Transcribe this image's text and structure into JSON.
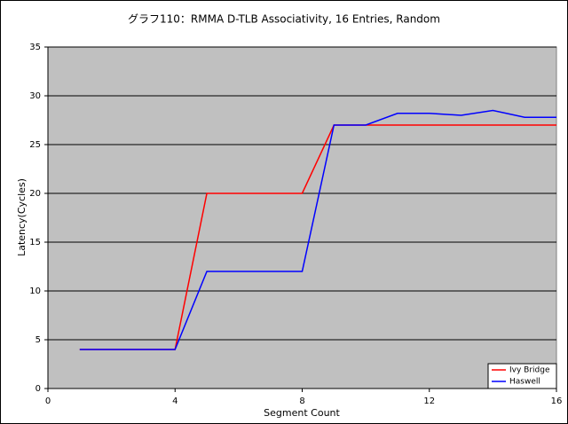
{
  "chart_data": {
    "type": "line",
    "title": "グラフ110：RMMA D-TLB Associativity, 16 Entries, Random",
    "x_label": "Segment Count",
    "y_label": "Latency(Cycles)",
    "x": [
      1,
      2,
      3,
      4,
      5,
      6,
      7,
      8,
      9,
      10,
      11,
      12,
      13,
      14,
      15,
      16
    ],
    "series": [
      {
        "name": "Ivy Bridge",
        "color": "#ff0000",
        "values": [
          4,
          4,
          4,
          4,
          20,
          20,
          20,
          20,
          27,
          27,
          27,
          27,
          27,
          27,
          27,
          27
        ]
      },
      {
        "name": "Haswell",
        "color": "#0000ff",
        "values": [
          4,
          4,
          4,
          4,
          12,
          12,
          12,
          12,
          27,
          27,
          28.2,
          28.2,
          28,
          28.5,
          27.8,
          27.8
        ]
      }
    ],
    "xlim": [
      0,
      16
    ],
    "xticks": [
      0,
      4,
      8,
      12,
      16
    ],
    "ylim": [
      0,
      35
    ],
    "yticks": [
      0,
      5,
      10,
      15,
      20,
      25,
      30,
      35
    ],
    "grid": true,
    "legend": "lower right",
    "plot_background": "#c0c0c0"
  }
}
